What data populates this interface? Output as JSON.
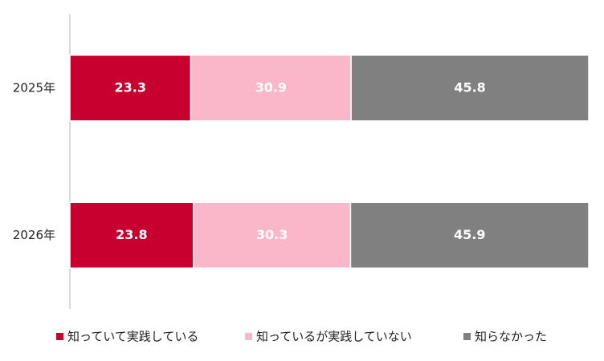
{
  "chart_data": {
    "type": "stacked-barh",
    "categories": [
      "2025年",
      "2026年"
    ],
    "series": [
      {
        "name": "知っていて実践している",
        "color": "#c8002f",
        "values": [
          23.3,
          23.8
        ]
      },
      {
        "name": "知っているが実践していない",
        "color": "#fbb7ca",
        "values": [
          30.9,
          30.3
        ]
      },
      {
        "name": "知らなかった",
        "color": "#808080",
        "values": [
          45.8,
          45.9
        ]
      }
    ],
    "xlim": [
      0,
      100
    ],
    "legend": "bottom"
  }
}
